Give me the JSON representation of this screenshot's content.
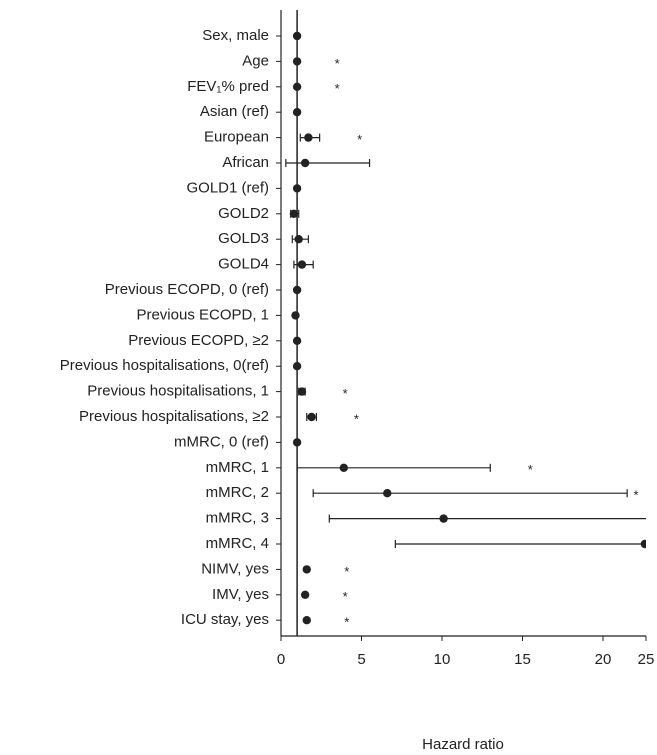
{
  "chart_data": {
    "type": "forest",
    "x_label": "Hazard ratio",
    "categories": [
      "Sex, male",
      "Age",
      "FEV₁% pred",
      "Asian (ref)",
      "European",
      "African",
      "GOLD1 (ref)",
      "GOLD2",
      "GOLD3",
      "GOLD4",
      "Previous ECOPD, 0 (ref)",
      "Previous ECOPD, 1",
      "Previous ECOPD, ≥2",
      "Previous hospitalisations, 0(ref)",
      "Previous hospitalisations, 1",
      "Previous hospitalisations, ≥2",
      "mMRC, 0 (ref)",
      "mMRC, 1",
      "mMRC, 2",
      "mMRC, 3",
      "mMRC, 4",
      "NIMV, yes",
      "IMV, yes",
      "ICU stay, yes"
    ],
    "values": [
      1.0,
      1.0,
      1.0,
      1.0,
      1.7,
      1.5,
      1.0,
      0.8,
      1.1,
      1.3,
      1.0,
      0.9,
      1.0,
      1.0,
      1.3,
      1.9,
      1.0,
      3.9,
      6.6,
      10.1,
      22.6,
      1.6,
      1.5,
      1.6
    ],
    "lower": [
      null,
      null,
      null,
      null,
      1.2,
      0.3,
      null,
      0.6,
      0.7,
      0.8,
      null,
      null,
      null,
      null,
      1.1,
      1.6,
      null,
      1.0,
      2.0,
      3.0,
      7.1,
      null,
      null,
      null
    ],
    "upper": [
      null,
      null,
      null,
      null,
      2.4,
      5.5,
      null,
      1.1,
      1.7,
      2.0,
      null,
      null,
      null,
      null,
      1.5,
      2.2,
      null,
      13.0,
      21.5,
      25,
      25,
      null,
      null,
      null
    ],
    "significance": [
      null,
      "*",
      "*",
      null,
      "*",
      null,
      null,
      null,
      null,
      null,
      null,
      null,
      null,
      null,
      "*",
      "*",
      null,
      "*",
      "*",
      null,
      null,
      "*",
      "*",
      "*"
    ],
    "reference_line": 1,
    "color": "#222222",
    "xlim": [
      0,
      25
    ],
    "xticks": [
      0,
      5,
      10,
      15,
      20,
      25
    ]
  }
}
